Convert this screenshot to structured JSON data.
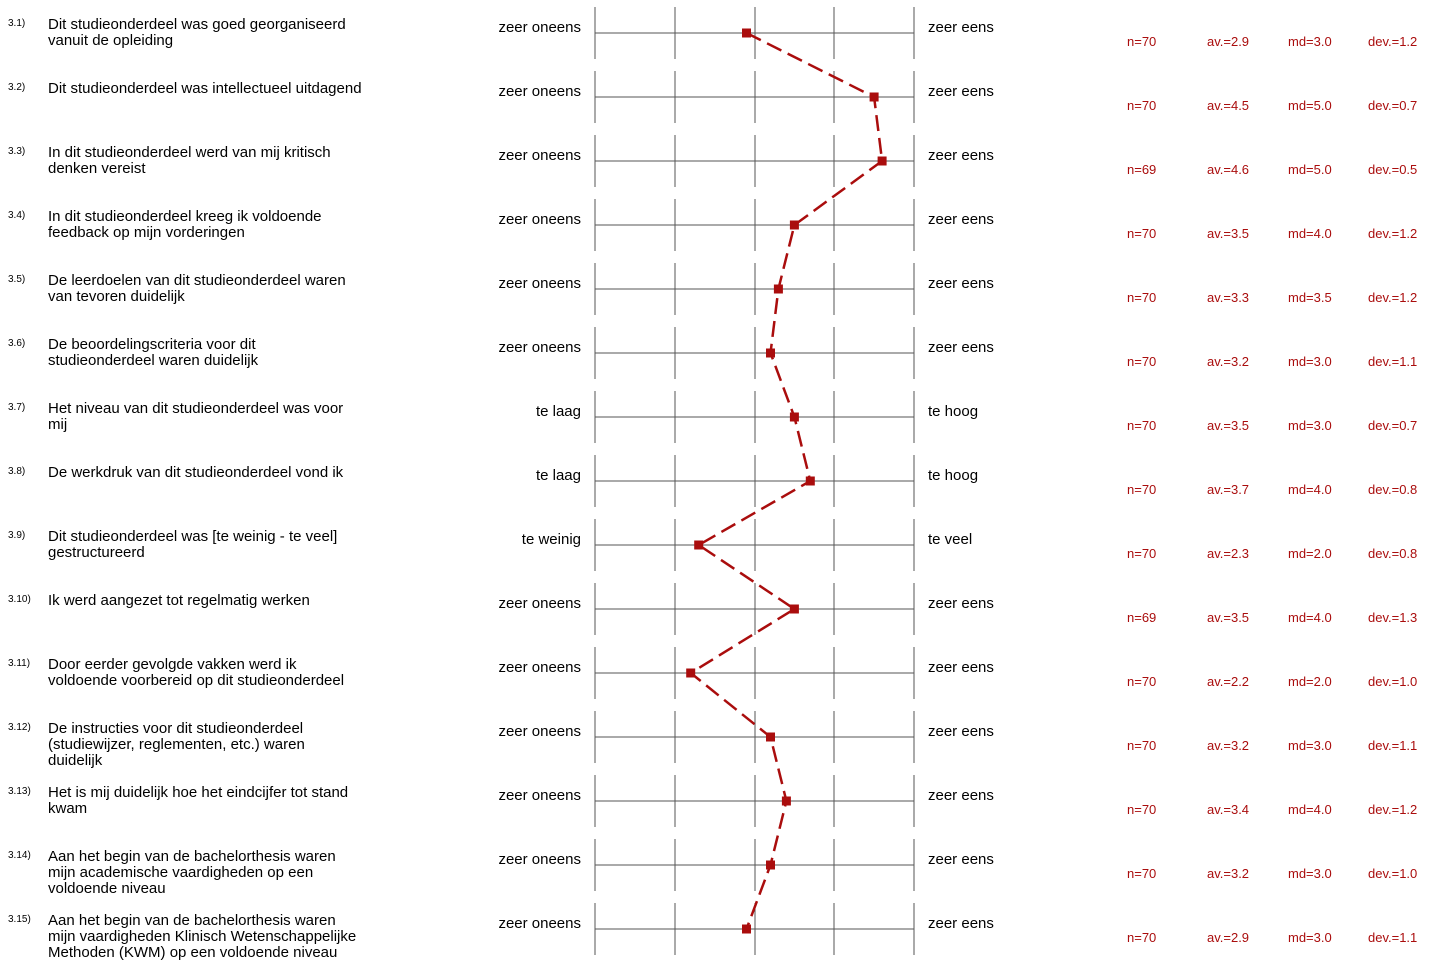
{
  "colors": {
    "accent": "#aa0d0d",
    "axis": "#555555",
    "text": "#000000"
  },
  "chart_data": {
    "type": "line",
    "scale": [
      1,
      5
    ],
    "series": [
      {
        "values": [
          2.9,
          4.5,
          4.6,
          3.5,
          3.3,
          3.2,
          3.5,
          3.7,
          2.3,
          3.5,
          2.2,
          3.2,
          3.4,
          3.2,
          2.9
        ]
      }
    ],
    "items": [
      {
        "num": "3.1)",
        "question": [
          "Dit studieonderdeel was goed georganiseerd",
          "vanuit de opleiding"
        ],
        "left": "zeer oneens",
        "right": "zeer eens",
        "n": "n=70",
        "av": "av.=2.9",
        "md": "md=3.0",
        "dev": "dev.=1.2",
        "value": 2.9
      },
      {
        "num": "3.2)",
        "question": [
          "Dit studieonderdeel was intellectueel uitdagend"
        ],
        "left": "zeer oneens",
        "right": "zeer eens",
        "n": "n=70",
        "av": "av.=4.5",
        "md": "md=5.0",
        "dev": "dev.=0.7",
        "value": 4.5
      },
      {
        "num": "3.3)",
        "question": [
          "In dit studieonderdeel werd van mij kritisch",
          "denken vereist"
        ],
        "left": "zeer oneens",
        "right": "zeer eens",
        "n": "n=69",
        "av": "av.=4.6",
        "md": "md=5.0",
        "dev": "dev.=0.5",
        "value": 4.6
      },
      {
        "num": "3.4)",
        "question": [
          "In dit studieonderdeel kreeg ik voldoende",
          "feedback op mijn vorderingen"
        ],
        "left": "zeer oneens",
        "right": "zeer eens",
        "n": "n=70",
        "av": "av.=3.5",
        "md": "md=4.0",
        "dev": "dev.=1.2",
        "value": 3.5
      },
      {
        "num": "3.5)",
        "question": [
          "De leerdoelen van dit studieonderdeel waren",
          "van tevoren duidelijk"
        ],
        "left": "zeer oneens",
        "right": "zeer eens",
        "n": "n=70",
        "av": "av.=3.3",
        "md": "md=3.5",
        "dev": "dev.=1.2",
        "value": 3.3
      },
      {
        "num": "3.6)",
        "question": [
          "De beoordelingscriteria voor dit",
          "studieonderdeel waren duidelijk"
        ],
        "left": "zeer oneens",
        "right": "zeer eens",
        "n": "n=70",
        "av": "av.=3.2",
        "md": "md=3.0",
        "dev": "dev.=1.1",
        "value": 3.2
      },
      {
        "num": "3.7)",
        "question": [
          "Het niveau van dit studieonderdeel was voor",
          "mij"
        ],
        "left": "te laag",
        "right": "te hoog",
        "n": "n=70",
        "av": "av.=3.5",
        "md": "md=3.0",
        "dev": "dev.=0.7",
        "value": 3.5
      },
      {
        "num": "3.8)",
        "question": [
          "De werkdruk van dit studieonderdeel vond ik"
        ],
        "left": "te laag",
        "right": "te hoog",
        "n": "n=70",
        "av": "av.=3.7",
        "md": "md=4.0",
        "dev": "dev.=0.8",
        "value": 3.7
      },
      {
        "num": "3.9)",
        "question": [
          "Dit studieonderdeel was [te weinig - te veel]",
          "gestructureerd"
        ],
        "left": "te weinig",
        "right": "te veel",
        "n": "n=70",
        "av": "av.=2.3",
        "md": "md=2.0",
        "dev": "dev.=0.8",
        "value": 2.3
      },
      {
        "num": "3.10)",
        "question": [
          "Ik werd aangezet tot regelmatig werken"
        ],
        "left": "zeer oneens",
        "right": "zeer eens",
        "n": "n=69",
        "av": "av.=3.5",
        "md": "md=4.0",
        "dev": "dev.=1.3",
        "value": 3.5
      },
      {
        "num": "3.11)",
        "question": [
          "Door eerder gevolgde vakken werd ik",
          "voldoende voorbereid op dit studieonderdeel"
        ],
        "left": "zeer oneens",
        "right": "zeer eens",
        "n": "n=70",
        "av": "av.=2.2",
        "md": "md=2.0",
        "dev": "dev.=1.0",
        "value": 2.2
      },
      {
        "num": "3.12)",
        "question": [
          "De instructies voor dit studieonderdeel",
          "(studiewijzer, reglementen, etc.) waren",
          "duidelijk"
        ],
        "left": "zeer oneens",
        "right": "zeer eens",
        "n": "n=70",
        "av": "av.=3.2",
        "md": "md=3.0",
        "dev": "dev.=1.1",
        "value": 3.2
      },
      {
        "num": "3.13)",
        "question": [
          "Het is mij duidelijk hoe het eindcijfer tot stand",
          "kwam"
        ],
        "left": "zeer oneens",
        "right": "zeer eens",
        "n": "n=70",
        "av": "av.=3.4",
        "md": "md=4.0",
        "dev": "dev.=1.2",
        "value": 3.4
      },
      {
        "num": "3.14)",
        "question": [
          "Aan het begin van de bachelorthesis waren",
          "mijn academische vaardigheden op een",
          "voldoende niveau"
        ],
        "left": "zeer oneens",
        "right": "zeer eens",
        "n": "n=70",
        "av": "av.=3.2",
        "md": "md=3.0",
        "dev": "dev.=1.0",
        "value": 3.2
      },
      {
        "num": "3.15)",
        "question": [
          "Aan het begin van de bachelorthesis waren",
          "mijn vaardigheden Klinisch Wetenschappelijke",
          "Methoden (KWM) op een voldoende niveau"
        ],
        "left": "zeer oneens",
        "right": "zeer eens",
        "n": "n=70",
        "av": "av.=2.9",
        "md": "md=3.0",
        "dev": "dev.=1.1",
        "value": 2.9
      }
    ]
  }
}
